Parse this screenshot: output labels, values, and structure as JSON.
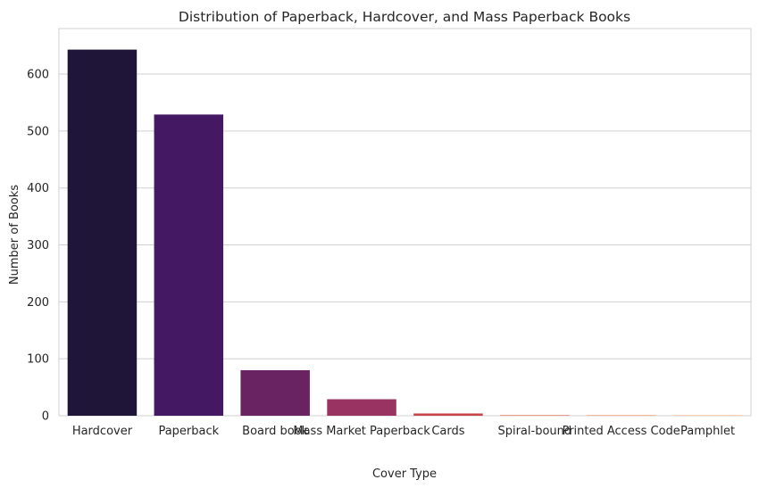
{
  "chart_data": {
    "type": "bar",
    "title": "Distribution of Paperback, Hardcover, and Mass Paperback Books",
    "xlabel": "Cover Type",
    "ylabel": "Number of Books",
    "categories": [
      "Hardcover",
      "Paperback",
      "Board book",
      "Mass Market Paperback",
      "Cards",
      "Spiral-bound",
      "Printed Access Code",
      "Pamphlet"
    ],
    "values": [
      643,
      529,
      80,
      29,
      4,
      1,
      1,
      1
    ],
    "colors": [
      "#1e1538",
      "#451863",
      "#6a2362",
      "#983362",
      "#c8444a",
      "#e0644a",
      "#ef8e62",
      "#f5b588"
    ],
    "ylim": [
      0,
      680
    ],
    "yticks": [
      0,
      100,
      200,
      300,
      400,
      500,
      600
    ],
    "grid": "horizontal",
    "legend": "none"
  }
}
